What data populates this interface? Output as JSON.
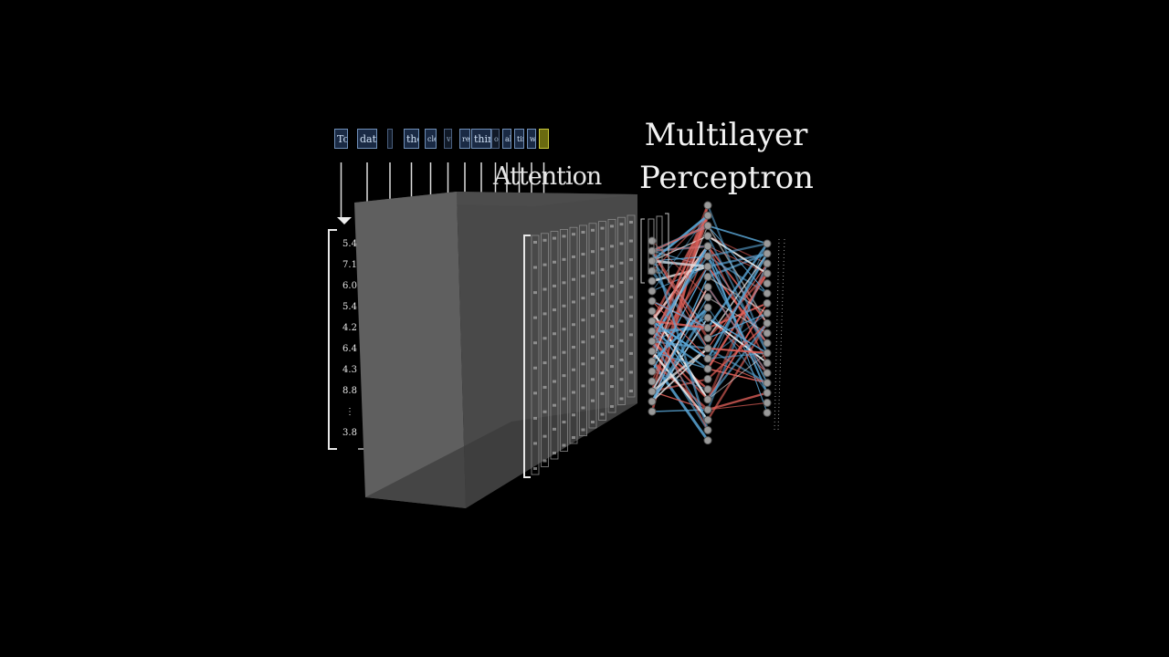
{
  "labels": {
    "mlp_line1": "Multilayer",
    "mlp_line2": "Perceptron",
    "attention": "Attention"
  },
  "tokens": [
    {
      "text": "To",
      "style": "normal"
    },
    {
      "text": "date",
      "style": "normal"
    },
    {
      "text": "",
      "style": "faint"
    },
    {
      "text": "the",
      "style": "normal"
    },
    {
      "text": "cle",
      "style": "normal"
    },
    {
      "text": "ve",
      "style": "faint"
    },
    {
      "text": "rest",
      "style": "normal"
    },
    {
      "text": "thinker",
      "style": "normal"
    },
    {
      "text": "of",
      "style": "faint"
    },
    {
      "text": "all",
      "style": "normal"
    },
    {
      "text": "time",
      "style": "normal"
    },
    {
      "text": "was",
      "style": "normal"
    },
    {
      "text": "",
      "style": "yellow"
    }
  ],
  "input_vector": [
    "5.4",
    "7.1",
    "6.0",
    "5.4",
    "4.2",
    "6.4",
    "4.3",
    "8.8",
    "⋮",
    "3.8"
  ],
  "colors": {
    "background": "#000000",
    "block": "#5a5a5a",
    "token_border": "#6f8fb8",
    "edge_red": "#e0615a",
    "edge_blue": "#5aa6d6",
    "edge_white": "#e8e8e8",
    "neuron": "#9a9a9a"
  }
}
